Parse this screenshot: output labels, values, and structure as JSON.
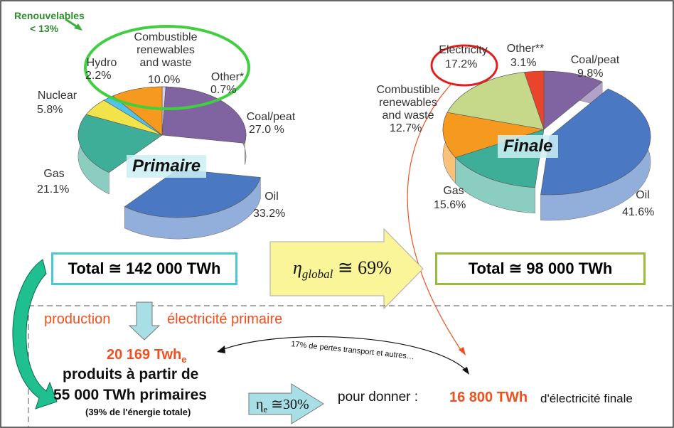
{
  "chart_data": [
    {
      "type": "pie",
      "title": "Primaire",
      "categories": [
        "Other*",
        "Coal/peat",
        "Oil",
        "Gas",
        "Nuclear",
        "Hydro",
        "Combustible renewables and waste"
      ],
      "values": [
        0.7,
        27.0,
        33.2,
        21.1,
        5.8,
        2.2,
        10.0
      ],
      "value_labels": [
        "0.7%",
        "27.0 %",
        "33.2%",
        "21.1%",
        "5.8%",
        "2.2%",
        "10.0%"
      ],
      "colors": [
        "#d9d2e9",
        "#8064a2",
        "#4a78c2",
        "#3fae98",
        "#f2e34a",
        "#4fc3ea",
        "#f59a1f"
      ]
    },
    {
      "type": "pie",
      "title": "Finale",
      "categories": [
        "Coal/peat",
        "Oil",
        "Gas",
        "Combustible renewables and waste",
        "Electricity",
        "Other**"
      ],
      "values": [
        9.8,
        41.6,
        15.6,
        12.7,
        17.2,
        3.1
      ],
      "value_labels": [
        "9.8%",
        "41.6%",
        "15.6%",
        "12.7%",
        "17.2%",
        "3.1%"
      ],
      "colors": [
        "#8064a2",
        "#4a78c2",
        "#3fae98",
        "#f59a1f",
        "#c6d88a",
        "#e8452c"
      ]
    }
  ],
  "renewables": {
    "label": "Renouvelables",
    "share": "< 13%"
  },
  "primary_total": "Total ≅ 142 000 TWh",
  "final_total": "Total ≅ 98 000 TWh",
  "efficiency": {
    "symbol": "η",
    "subscript": "global",
    "value": "≅ 69%"
  },
  "electricity": {
    "production": "production",
    "primary": "électricité primaire",
    "output": "20 169 Twh",
    "output_subscript": "e",
    "from": "produits à partir de",
    "input": "55 000 TWh primaires",
    "share": "(39% de l'énergie totale)",
    "efficiency_symbol": "η",
    "efficiency_subscript": "e",
    "efficiency_value": "≅30%",
    "to": "pour donner :",
    "losses": "17% de pertes transport et autres…",
    "final": "16 800 TWh",
    "final_label": "d'électricité finale"
  }
}
